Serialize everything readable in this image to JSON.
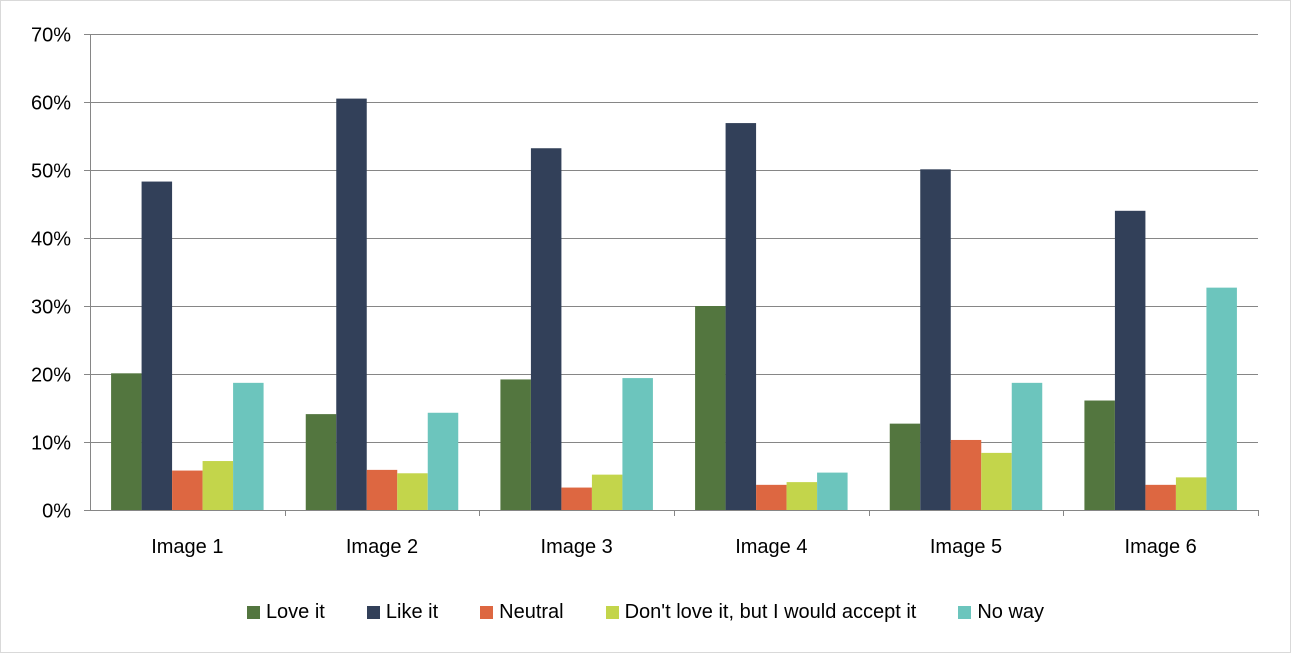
{
  "chart_data": {
    "type": "bar",
    "title": "",
    "xlabel": "",
    "ylabel": "",
    "categories": [
      "Image 1",
      "Image 2",
      "Image 3",
      "Image 4",
      "Image 5",
      "Image 6"
    ],
    "ylim": [
      0,
      70
    ],
    "yticks": [
      0,
      10,
      20,
      30,
      40,
      50,
      60,
      70
    ],
    "ytick_labels": [
      "0%",
      "10%",
      "20%",
      "30%",
      "40%",
      "50%",
      "60%",
      "70%"
    ],
    "grid": true,
    "legend_position": "bottom",
    "series": [
      {
        "name": "Love it",
        "color": "#53763f",
        "values": [
          20.1,
          14.1,
          19.2,
          30.0,
          12.7,
          16.1
        ]
      },
      {
        "name": "Like it",
        "color": "#324059",
        "values": [
          48.3,
          60.5,
          53.2,
          56.9,
          50.1,
          44.0
        ]
      },
      {
        "name": "Neutral",
        "color": "#dd6741",
        "values": [
          5.8,
          5.9,
          3.3,
          3.7,
          10.3,
          3.7
        ]
      },
      {
        "name": "Don't love it, but I would accept it",
        "color": "#c3d54b",
        "values": [
          7.2,
          5.4,
          5.2,
          4.1,
          8.4,
          4.8
        ]
      },
      {
        "name": "No way",
        "color": "#6cc5bd",
        "values": [
          18.7,
          14.3,
          19.4,
          5.5,
          18.7,
          32.7
        ]
      }
    ]
  }
}
